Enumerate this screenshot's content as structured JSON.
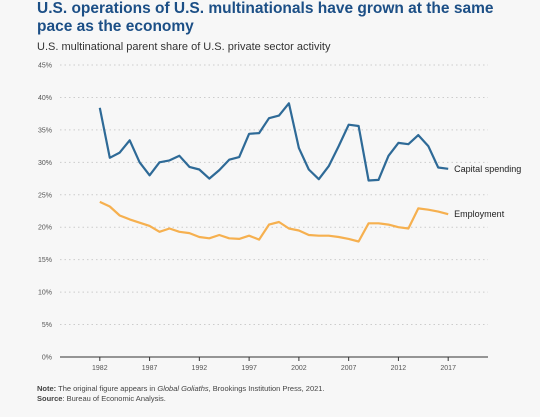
{
  "header": {
    "title": "U.S. operations of U.S. multinationals have grown at the same pace as the economy",
    "subtitle": "U.S. multinational parent share of U.S. private sector activity"
  },
  "footer": {
    "note_label": "Note:",
    "note_pre": " The original figure appears in ",
    "note_italic": "Global Goliaths",
    "note_post": ", Brookings Institution Press, 2021.",
    "source_label": "Source",
    "source_text": ": Bureau of Economic Analysis."
  },
  "colors": {
    "capital_spending": "#2e6a97",
    "employment": "#f6b04f",
    "grid": "#cccccc",
    "axis": "#333333"
  },
  "chart_data": {
    "type": "line",
    "title": "U.S. multinational parent share of U.S. private sector activity",
    "xlim": [
      1978,
      2021
    ],
    "ylim": [
      0,
      45
    ],
    "x_ticks": [
      1982,
      1987,
      1992,
      1997,
      2002,
      2007,
      2012,
      2017
    ],
    "x_tick_labels": [
      "1982",
      "1987",
      "1992",
      "1997",
      "2002",
      "2007",
      "2012",
      "2017"
    ],
    "y_ticks": [
      0,
      5,
      10,
      15,
      20,
      25,
      30,
      35,
      40,
      45
    ],
    "y_tick_labels": [
      "0%",
      "5%",
      "10%",
      "15%",
      "20%",
      "25%",
      "30%",
      "35%",
      "40%",
      "45%"
    ],
    "grid": "horizontal dotted",
    "series": [
      {
        "name": "Capital spending",
        "x": [
          1982,
          1983,
          1984,
          1985,
          1986,
          1987,
          1988,
          1989,
          1990,
          1991,
          1992,
          1993,
          1994,
          1995,
          1996,
          1997,
          1998,
          1999,
          2000,
          2001,
          2002,
          2003,
          2004,
          2005,
          2006,
          2007,
          2008,
          2009,
          2010,
          2011,
          2012,
          2013,
          2014,
          2015,
          2016,
          2017
        ],
        "values": [
          38.4,
          30.7,
          31.5,
          33.4,
          30.0,
          28.0,
          30.0,
          30.3,
          31.0,
          29.3,
          28.9,
          27.5,
          28.8,
          30.4,
          30.8,
          34.4,
          34.5,
          36.8,
          37.2,
          39.1,
          32.2,
          28.9,
          27.4,
          29.4,
          32.5,
          35.8,
          35.6,
          27.2,
          27.3,
          31.0,
          33.0,
          32.8,
          34.2,
          32.5,
          29.2,
          29.0
        ]
      },
      {
        "name": "Employment",
        "x": [
          1982,
          1983,
          1984,
          1985,
          1986,
          1987,
          1988,
          1989,
          1990,
          1991,
          1992,
          1993,
          1994,
          1995,
          1996,
          1997,
          1998,
          1999,
          2000,
          2001,
          2002,
          2003,
          2004,
          2005,
          2006,
          2007,
          2008,
          2009,
          2010,
          2011,
          2012,
          2013,
          2014,
          2015,
          2016,
          2017
        ],
        "values": [
          23.9,
          23.2,
          21.8,
          21.2,
          20.7,
          20.2,
          19.3,
          19.8,
          19.3,
          19.1,
          18.5,
          18.3,
          18.8,
          18.3,
          18.2,
          18.7,
          18.1,
          20.4,
          20.8,
          19.8,
          19.5,
          18.8,
          18.7,
          18.7,
          18.5,
          18.2,
          17.8,
          20.6,
          20.6,
          20.4,
          20.0,
          19.8,
          22.9,
          22.7,
          22.4,
          22.0
        ]
      }
    ]
  }
}
